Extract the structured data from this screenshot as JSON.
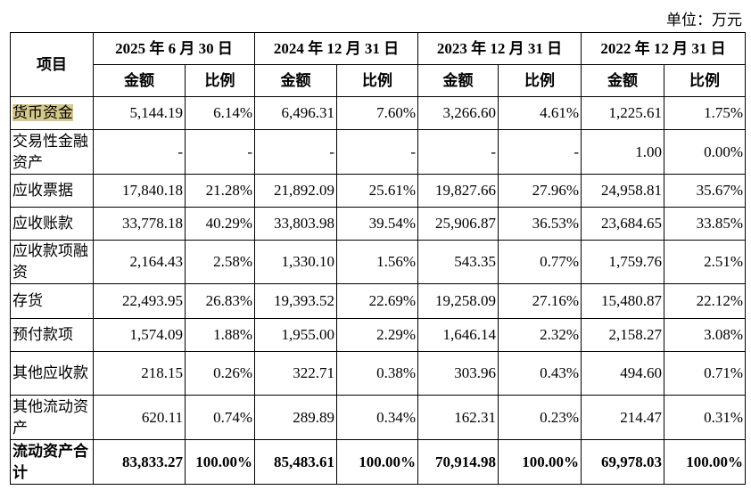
{
  "unit_label": "单位：万元",
  "header": {
    "item": "项目",
    "periods": [
      "2025 年 6 月 30 日",
      "2024 年 12 月 31 日",
      "2023 年 12 月 31 日",
      "2022 年 12 月 31 日"
    ],
    "amount": "金额",
    "ratio": "比例"
  },
  "rows": [
    {
      "item": "货币资金",
      "highlighted": true,
      "values": [
        "5,144.19",
        "6.14%",
        "6,496.31",
        "7.60%",
        "3,266.60",
        "4.61%",
        "1,225.61",
        "1.75%"
      ]
    },
    {
      "item": "交易性金融资产",
      "values": [
        "-",
        "-",
        "-",
        "-",
        "-",
        "-",
        "1.00",
        "0.00%"
      ]
    },
    {
      "item": "应收票据",
      "values": [
        "17,840.18",
        "21.28%",
        "21,892.09",
        "25.61%",
        "19,827.66",
        "27.96%",
        "24,958.81",
        "35.67%"
      ]
    },
    {
      "item": "应收账款",
      "values": [
        "33,778.18",
        "40.29%",
        "33,803.98",
        "39.54%",
        "25,906.87",
        "36.53%",
        "23,684.65",
        "33.85%"
      ]
    },
    {
      "item": "应收款项融资",
      "values": [
        "2,164.43",
        "2.58%",
        "1,330.10",
        "1.56%",
        "543.35",
        "0.77%",
        "1,759.76",
        "2.51%"
      ]
    },
    {
      "item": "存货",
      "values": [
        "22,493.95",
        "26.83%",
        "19,393.52",
        "22.69%",
        "19,258.09",
        "27.16%",
        "15,480.87",
        "22.12%"
      ]
    },
    {
      "item": "预付款项",
      "values": [
        "1,574.09",
        "1.88%",
        "1,955.00",
        "2.29%",
        "1,646.14",
        "2.32%",
        "2,158.27",
        "3.08%"
      ]
    },
    {
      "item": "其他应收款",
      "values": [
        "218.15",
        "0.26%",
        "322.71",
        "0.38%",
        "303.96",
        "0.43%",
        "494.60",
        "0.71%"
      ]
    },
    {
      "item": "其他流动资产",
      "values": [
        "620.11",
        "0.74%",
        "289.89",
        "0.34%",
        "162.31",
        "0.23%",
        "214.47",
        "0.31%"
      ]
    },
    {
      "item": "流动资产合计",
      "total": true,
      "values": [
        "83,833.27",
        "100.00%",
        "85,483.61",
        "100.00%",
        "70,914.98",
        "100.00%",
        "69,978.03",
        "100.00%"
      ]
    }
  ],
  "colors": {
    "highlight": "#d4c98a"
  }
}
